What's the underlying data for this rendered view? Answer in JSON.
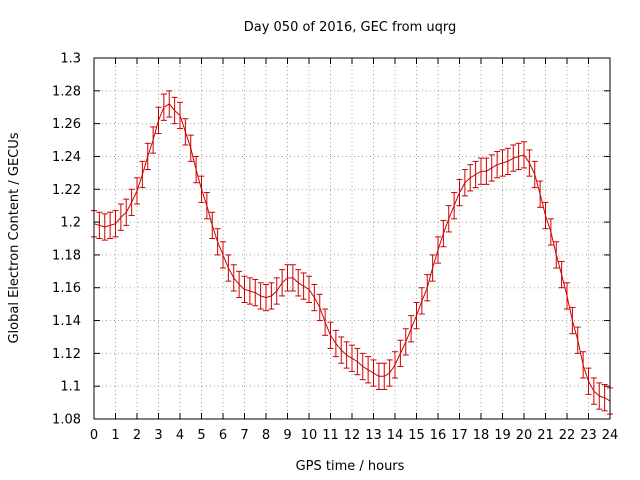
{
  "chart_data": {
    "type": "line",
    "title": "Day 050 of 2016, GEC from uqrg",
    "xlabel": "GPS time / hours",
    "ylabel": "Global Electron Content / GECUs",
    "xlim": [
      0,
      24
    ],
    "ylim": [
      1.08,
      1.3
    ],
    "grid": true,
    "error_bars": true,
    "x_ticks": [
      0,
      1,
      2,
      3,
      4,
      5,
      6,
      7,
      8,
      9,
      10,
      11,
      12,
      13,
      14,
      15,
      16,
      17,
      18,
      19,
      20,
      21,
      22,
      23,
      24
    ],
    "y_ticks": [
      1.08,
      1.1,
      1.12,
      1.14,
      1.16,
      1.18,
      1.2,
      1.22,
      1.24,
      1.26,
      1.28,
      1.3
    ],
    "x_tick_labels": [
      "0",
      "1",
      "2",
      "3",
      "4",
      "5",
      "6",
      "7",
      "8",
      "9",
      "10",
      "11",
      "12",
      "13",
      "14",
      "15",
      "16",
      "17",
      "18",
      "19",
      "20",
      "21",
      "22",
      "23",
      "24"
    ],
    "y_tick_labels": [
      "1.08",
      "1.1",
      "1.12",
      "1.14",
      "1.16",
      "1.18",
      "1.2",
      "1.22",
      "1.24",
      "1.26",
      "1.28",
      "1.3"
    ],
    "colors": {
      "series": "#cc0000",
      "grid": "#a0a0a0"
    },
    "series": [
      {
        "x": [
          0.0,
          0.25,
          0.5,
          0.75,
          1.0,
          1.25,
          1.5,
          1.75,
          2.0,
          2.25,
          2.5,
          2.75,
          3.0,
          3.25,
          3.5,
          3.75,
          4.0,
          4.25,
          4.5,
          4.75,
          5.0,
          5.25,
          5.5,
          5.75,
          6.0,
          6.25,
          6.5,
          6.75,
          7.0,
          7.25,
          7.5,
          7.75,
          8.0,
          8.25,
          8.5,
          8.75,
          9.0,
          9.25,
          9.5,
          9.75,
          10.0,
          10.25,
          10.5,
          10.75,
          11.0,
          11.25,
          11.5,
          11.75,
          12.0,
          12.25,
          12.5,
          12.75,
          13.0,
          13.25,
          13.5,
          13.75,
          14.0,
          14.25,
          14.5,
          14.75,
          15.0,
          15.25,
          15.5,
          15.75,
          16.0,
          16.25,
          16.5,
          16.75,
          17.0,
          17.25,
          17.5,
          17.75,
          18.0,
          18.25,
          18.5,
          18.75,
          19.0,
          19.25,
          19.5,
          19.75,
          20.0,
          20.25,
          20.5,
          20.75,
          21.0,
          21.25,
          21.5,
          21.75,
          22.0,
          22.25,
          22.5,
          22.75,
          23.0,
          23.25,
          23.5,
          23.75,
          24.0
        ],
        "y": [
          1.199,
          1.198,
          1.197,
          1.198,
          1.199,
          1.203,
          1.206,
          1.212,
          1.219,
          1.229,
          1.24,
          1.25,
          1.262,
          1.27,
          1.272,
          1.268,
          1.265,
          1.255,
          1.245,
          1.232,
          1.22,
          1.21,
          1.198,
          1.188,
          1.18,
          1.172,
          1.166,
          1.162,
          1.159,
          1.158,
          1.157,
          1.155,
          1.154,
          1.155,
          1.158,
          1.163,
          1.166,
          1.166,
          1.163,
          1.161,
          1.159,
          1.154,
          1.148,
          1.139,
          1.131,
          1.126,
          1.122,
          1.119,
          1.117,
          1.115,
          1.112,
          1.11,
          1.108,
          1.106,
          1.106,
          1.108,
          1.113,
          1.12,
          1.127,
          1.135,
          1.143,
          1.152,
          1.16,
          1.172,
          1.183,
          1.193,
          1.202,
          1.21,
          1.218,
          1.224,
          1.227,
          1.229,
          1.231,
          1.231,
          1.233,
          1.235,
          1.236,
          1.237,
          1.239,
          1.24,
          1.241,
          1.236,
          1.229,
          1.217,
          1.204,
          1.194,
          1.18,
          1.168,
          1.155,
          1.14,
          1.128,
          1.113,
          1.103,
          1.097,
          1.094,
          1.093,
          1.091
        ],
        "err": 0.008
      }
    ]
  }
}
